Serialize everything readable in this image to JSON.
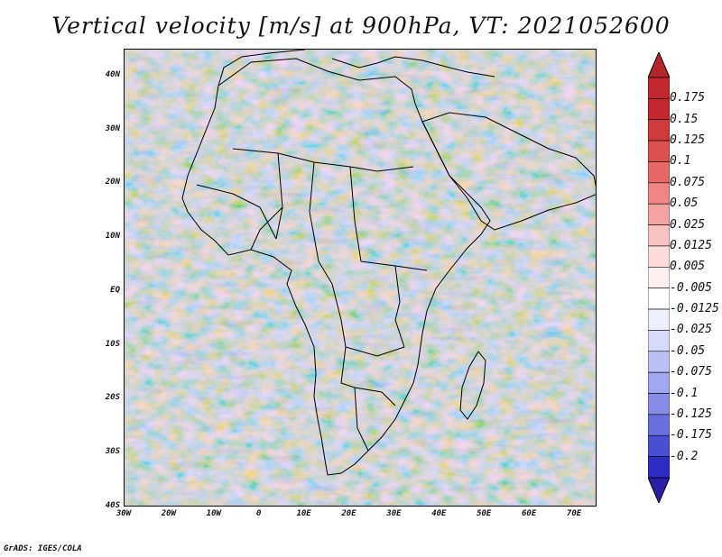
{
  "title": "Vertical velocity [m/s] at 900hPa, VT: 2021052600",
  "footer": "GrADS: IGES/COLA",
  "map": {
    "lon_range": [
      -30,
      75
    ],
    "lat_range": [
      -40,
      45
    ],
    "lat_ticks": [
      {
        "value": 40,
        "label": "40N"
      },
      {
        "value": 30,
        "label": "30N"
      },
      {
        "value": 20,
        "label": "20N"
      },
      {
        "value": 10,
        "label": "10N"
      },
      {
        "value": 0,
        "label": "EQ"
      },
      {
        "value": -10,
        "label": "10S"
      },
      {
        "value": -20,
        "label": "20S"
      },
      {
        "value": -30,
        "label": "30S"
      },
      {
        "value": -40,
        "label": "40S"
      }
    ],
    "lon_ticks": [
      {
        "value": -30,
        "label": "30W"
      },
      {
        "value": -20,
        "label": "20W"
      },
      {
        "value": -10,
        "label": "10W"
      },
      {
        "value": 0,
        "label": "0"
      },
      {
        "value": 10,
        "label": "10E"
      },
      {
        "value": 20,
        "label": "20E"
      },
      {
        "value": 30,
        "label": "30E"
      },
      {
        "value": 40,
        "label": "40E"
      },
      {
        "value": 50,
        "label": "50E"
      },
      {
        "value": 60,
        "label": "60E"
      },
      {
        "value": 70,
        "label": "70E"
      }
    ]
  },
  "colorbar": {
    "levels": [
      {
        "label": "0.175",
        "color": "#c1272d"
      },
      {
        "label": "0.15",
        "color": "#cf3a3a"
      },
      {
        "label": "0.125",
        "color": "#dc5050"
      },
      {
        "label": "0.1",
        "color": "#e66868"
      },
      {
        "label": "0.075",
        "color": "#ef8585"
      },
      {
        "label": "0.05",
        "color": "#f5a3a3"
      },
      {
        "label": "0.025",
        "color": "#f9c2c2"
      },
      {
        "label": "0.0125",
        "color": "#fcdcdc"
      },
      {
        "label": "0.005",
        "color": "#fef0f0"
      },
      {
        "label": "-0.005",
        "color": "#ffffff"
      },
      {
        "label": "-0.0125",
        "color": "#eceefc"
      },
      {
        "label": "-0.025",
        "color": "#d6daf8"
      },
      {
        "label": "-0.05",
        "color": "#bcc1f3"
      },
      {
        "label": "-0.075",
        "color": "#a0a7ee"
      },
      {
        "label": "-0.1",
        "color": "#868ce7"
      },
      {
        "label": "-0.125",
        "color": "#6a6fdf"
      },
      {
        "label": "-0.175",
        "color": "#4a4ed3"
      },
      {
        "label": "-0.2",
        "color": "#2e2cc4"
      }
    ],
    "top_arrow_color": "#b3262b",
    "bottom_arrow_color": "#2a1fa8"
  }
}
